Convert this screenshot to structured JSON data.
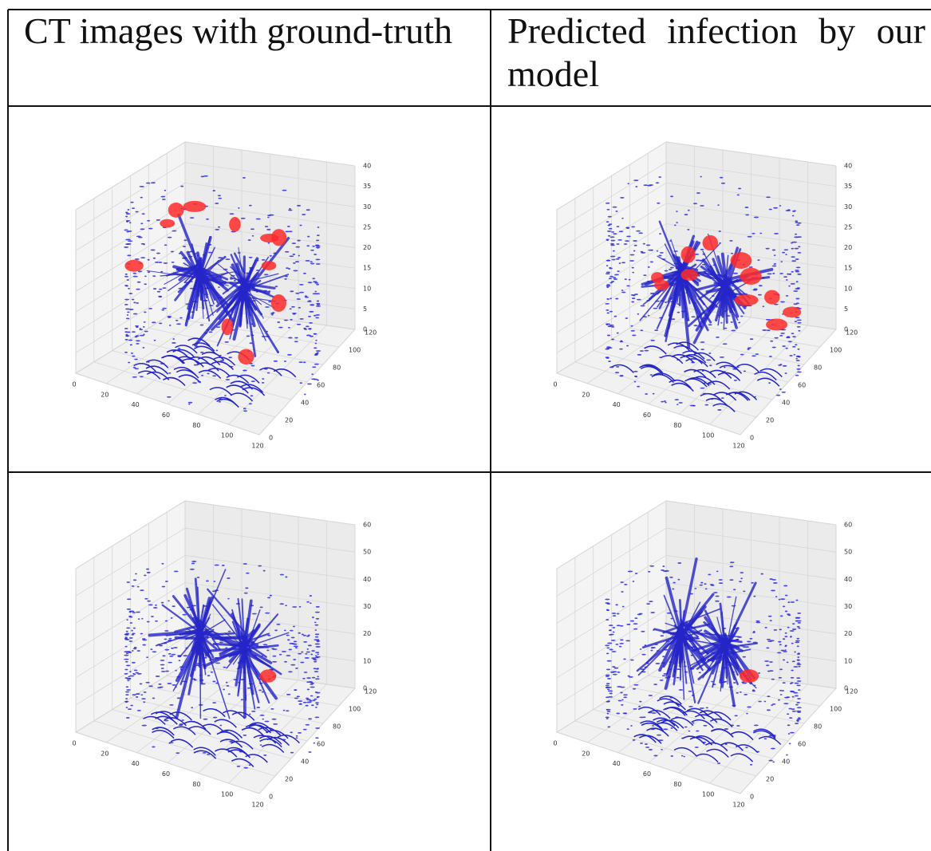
{
  "table": {
    "header": [
      "CT images with ground-truth",
      "Predicted infection by our model"
    ],
    "rows": [
      [
        {
          "x_ticks": [
            0,
            20,
            40,
            60,
            80,
            100,
            120
          ],
          "y_ticks": [
            0,
            20,
            40,
            60,
            80,
            100,
            120
          ],
          "z_ticks": [
            0,
            5,
            10,
            15,
            20,
            25,
            30,
            35,
            40
          ]
        },
        {
          "x_ticks": [
            0,
            20,
            40,
            60,
            80,
            100,
            120
          ],
          "y_ticks": [
            0,
            20,
            40,
            60,
            80,
            100,
            120
          ],
          "z_ticks": [
            0,
            5,
            10,
            15,
            20,
            25,
            30,
            35,
            40
          ]
        }
      ],
      [
        {
          "x_ticks": [
            0,
            20,
            40,
            60,
            80,
            100,
            120
          ],
          "y_ticks": [
            0,
            20,
            40,
            60,
            80,
            100,
            120
          ],
          "z_ticks": [
            0,
            10,
            20,
            30,
            40,
            50,
            60
          ]
        },
        {
          "x_ticks": [
            0,
            20,
            40,
            60,
            80,
            100,
            120
          ],
          "y_ticks": [
            0,
            20,
            40,
            60,
            80,
            100,
            120
          ],
          "z_ticks": [
            0,
            10,
            20,
            30,
            40,
            50,
            60
          ]
        }
      ]
    ]
  }
}
